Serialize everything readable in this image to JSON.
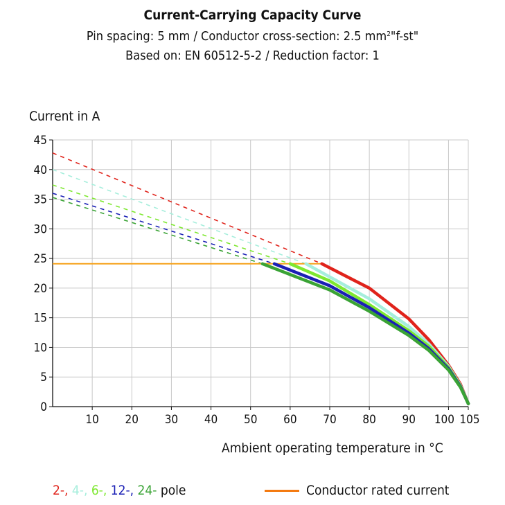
{
  "colors": {
    "pole_2": "#e0231b",
    "pole_4": "#a6eedc",
    "pole_6": "#7ee830",
    "pole_12": "#1a1fb5",
    "pole_24": "#3aa335",
    "rated": "#f6a21a",
    "legend_rated": "#f47a10",
    "grid": "#c8c8c8"
  },
  "chart_data": {
    "type": "line",
    "title": "Current-Carrying Capacity Curve",
    "subtitle_line1_prefix": "Pin spacing: 5 mm / Conductor cross-section: 2.5 mm",
    "subtitle_line1_sup": "2",
    "subtitle_line1_suffix": "\"f-st\"",
    "subtitle_line2": "Based on: EN 60512-5-2 / Reduction factor: 1",
    "ylabel": "Current in A",
    "xlabel": "Ambient operating temperature in °C",
    "xlim": [
      0,
      105
    ],
    "ylim": [
      0,
      45
    ],
    "x_ticks": [
      10,
      20,
      30,
      40,
      50,
      60,
      70,
      80,
      90,
      100,
      105
    ],
    "y_ticks": [
      0,
      5,
      10,
      15,
      20,
      25,
      30,
      35,
      40,
      45
    ],
    "grid": true,
    "rated_current": {
      "name": "Conductor rated current",
      "value": 24.1,
      "x_range": [
        0,
        68
      ]
    },
    "series": [
      {
        "pole": "2-",
        "color_key": "pole_2",
        "dashed": [
          [
            0,
            42.8
          ],
          [
            68,
            24.1
          ]
        ],
        "solid": [
          [
            68,
            24.1
          ],
          [
            80,
            20.0
          ],
          [
            90,
            14.8
          ],
          [
            95,
            11.3
          ],
          [
            100,
            7.0
          ],
          [
            103,
            3.8
          ],
          [
            105,
            0.5
          ]
        ]
      },
      {
        "pole": "4-",
        "color_key": "pole_4",
        "dashed": [
          [
            0,
            40.0
          ],
          [
            64,
            24.1
          ]
        ],
        "solid": [
          [
            64,
            24.1
          ],
          [
            80,
            18.2
          ],
          [
            90,
            13.5
          ],
          [
            95,
            10.6
          ],
          [
            100,
            6.8
          ],
          [
            103,
            3.6
          ],
          [
            105,
            0.5
          ]
        ]
      },
      {
        "pole": "6-",
        "color_key": "pole_6",
        "dashed": [
          [
            0,
            37.4
          ],
          [
            60,
            24.1
          ]
        ],
        "solid": [
          [
            60,
            24.1
          ],
          [
            70,
            21.2
          ],
          [
            80,
            17.2
          ],
          [
            90,
            12.8
          ],
          [
            95,
            10.2
          ],
          [
            100,
            6.6
          ],
          [
            103,
            3.5
          ],
          [
            105,
            0.5
          ]
        ]
      },
      {
        "pole": "12-",
        "color_key": "pole_12",
        "dashed": [
          [
            0,
            36.0
          ],
          [
            56,
            24.1
          ]
        ],
        "solid": [
          [
            56,
            24.1
          ],
          [
            70,
            20.4
          ],
          [
            80,
            16.7
          ],
          [
            90,
            12.4
          ],
          [
            95,
            9.8
          ],
          [
            100,
            6.4
          ],
          [
            103,
            3.4
          ],
          [
            105,
            0.5
          ]
        ]
      },
      {
        "pole": "24-",
        "color_key": "pole_24",
        "dashed": [
          [
            0,
            35.3
          ],
          [
            53,
            24.1
          ]
        ],
        "solid": [
          [
            53,
            24.1
          ],
          [
            70,
            19.7
          ],
          [
            80,
            16.1
          ],
          [
            90,
            12.0
          ],
          [
            95,
            9.5
          ],
          [
            100,
            6.2
          ],
          [
            103,
            3.3
          ],
          [
            105,
            0.5
          ]
        ]
      }
    ],
    "legend": {
      "poles": [
        "2-",
        "4-",
        "6-",
        "12-",
        "24-"
      ],
      "poles_suffix": "pole",
      "rated_label": "Conductor rated current"
    }
  }
}
